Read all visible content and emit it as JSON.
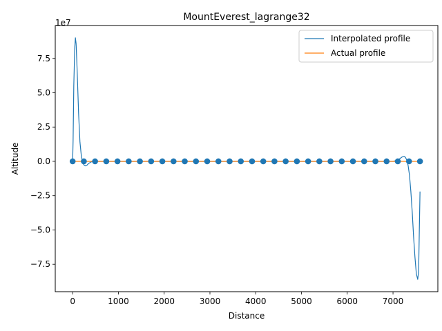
{
  "chart_data": {
    "type": "line",
    "title": "MountEverest_lagrange32",
    "xlabel": "Distance",
    "ylabel": "Altitude",
    "y_scale_label": "1e7",
    "xlim": [
      -380,
      7980
    ],
    "ylim": [
      -95000000,
      99000000
    ],
    "xticks": [
      0,
      1000,
      2000,
      3000,
      4000,
      5000,
      6000,
      7000
    ],
    "yticks": [
      -75000000,
      -50000000,
      -25000000,
      0,
      25000000,
      50000000,
      75000000
    ],
    "xtick_labels": [
      "0",
      "1000",
      "2000",
      "3000",
      "4000",
      "5000",
      "6000",
      "7000"
    ],
    "ytick_labels": [
      "−7.5",
      "−5.0",
      "−2.5",
      "0.0",
      "2.5",
      "5.0",
      "7.5"
    ],
    "grid": false,
    "legend_position": "top-right",
    "series": [
      {
        "name": "Interpolated profile",
        "color": "#1f77b4",
        "x": [
          0,
          10,
          25,
          45,
          60,
          75,
          90,
          110,
          130,
          160,
          190,
          220,
          250,
          280,
          310,
          350,
          400,
          450,
          500,
          600,
          7000,
          7100,
          7150,
          7200,
          7240,
          7270,
          7300,
          7330,
          7360,
          7390,
          7420,
          7450,
          7480,
          7510,
          7540,
          7560,
          7575,
          7590
        ],
        "y": [
          0,
          15000000,
          55000000,
          82000000,
          90000000,
          86000000,
          74000000,
          55000000,
          35000000,
          14000000,
          4000000,
          -1000000,
          -2700000,
          -3300000,
          -2900000,
          -1500000,
          -500000,
          0,
          0,
          0,
          0,
          800000,
          2000000,
          3200000,
          3600000,
          3000000,
          1000000,
          -3000000,
          -10000000,
          -22000000,
          -37000000,
          -55000000,
          -70000000,
          -82000000,
          -86000000,
          -80000000,
          -50000000,
          -22000000
        ]
      },
      {
        "name": "Actual profile",
        "color": "#ff7f0e",
        "x": [
          0,
          7590
        ],
        "y": [
          0,
          0
        ]
      }
    ],
    "points": {
      "color": "#1f77b4",
      "x": [
        0,
        245,
        490,
        735,
        980,
        1225,
        1470,
        1715,
        1960,
        2205,
        2450,
        2695,
        2940,
        3185,
        3430,
        3675,
        3920,
        4165,
        4410,
        4655,
        4900,
        5145,
        5390,
        5635,
        5880,
        6125,
        6370,
        6615,
        6860,
        7105,
        7350,
        7590
      ],
      "y": [
        0,
        0,
        0,
        0,
        0,
        0,
        0,
        0,
        0,
        0,
        0,
        0,
        0,
        0,
        0,
        0,
        0,
        0,
        0,
        0,
        0,
        0,
        0,
        0,
        0,
        0,
        0,
        0,
        0,
        0,
        0,
        0
      ]
    }
  }
}
